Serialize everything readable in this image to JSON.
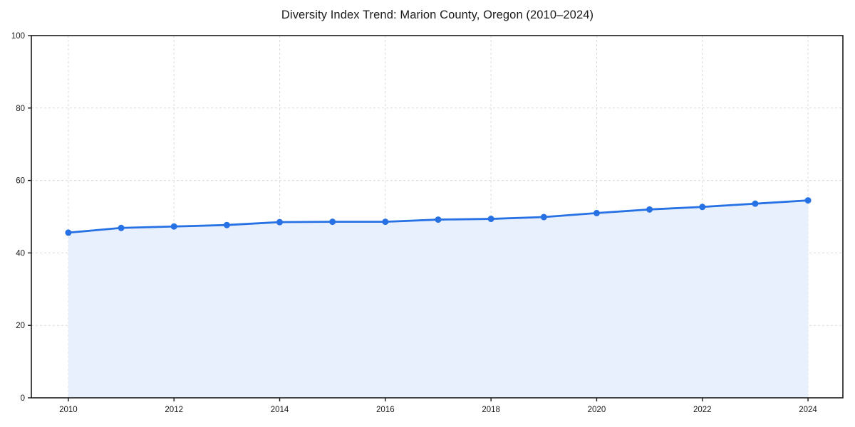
{
  "title": "Diversity Index Trend: Marion County, Oregon (2010–2024)",
  "chart_data": {
    "type": "area",
    "title": "Diversity Index Trend: Marion County, Oregon (2010–2024)",
    "x": [
      2010,
      2011,
      2012,
      2013,
      2014,
      2015,
      2016,
      2017,
      2018,
      2019,
      2020,
      2021,
      2022,
      2023,
      2024
    ],
    "series": [
      {
        "name": "Diversity Index",
        "values": [
          45.6,
          46.9,
          47.3,
          47.7,
          48.5,
          48.6,
          48.6,
          49.2,
          49.4,
          49.9,
          51.0,
          52.0,
          52.7,
          53.6,
          54.5
        ]
      }
    ],
    "xlabel": "",
    "ylabel": "",
    "xlim": [
      2009.3,
      2024.66
    ],
    "ylim": [
      0,
      100
    ],
    "x_ticks": [
      2010,
      2012,
      2014,
      2016,
      2018,
      2020,
      2022,
      2024
    ],
    "y_ticks": [
      0,
      20,
      40,
      60,
      80,
      100
    ],
    "grid": true,
    "grid_style": "dashed",
    "legend_position": "none",
    "marker": "circle",
    "colors": {
      "line": "#2671e3",
      "marker": "#2671e3",
      "fill": "#e9f0fd",
      "grid": "#dcdcdc",
      "axis": "#1a1a1a",
      "tick_label": "#1a1a1a",
      "title": "#1a1a1a",
      "background": "#ffffff"
    }
  }
}
